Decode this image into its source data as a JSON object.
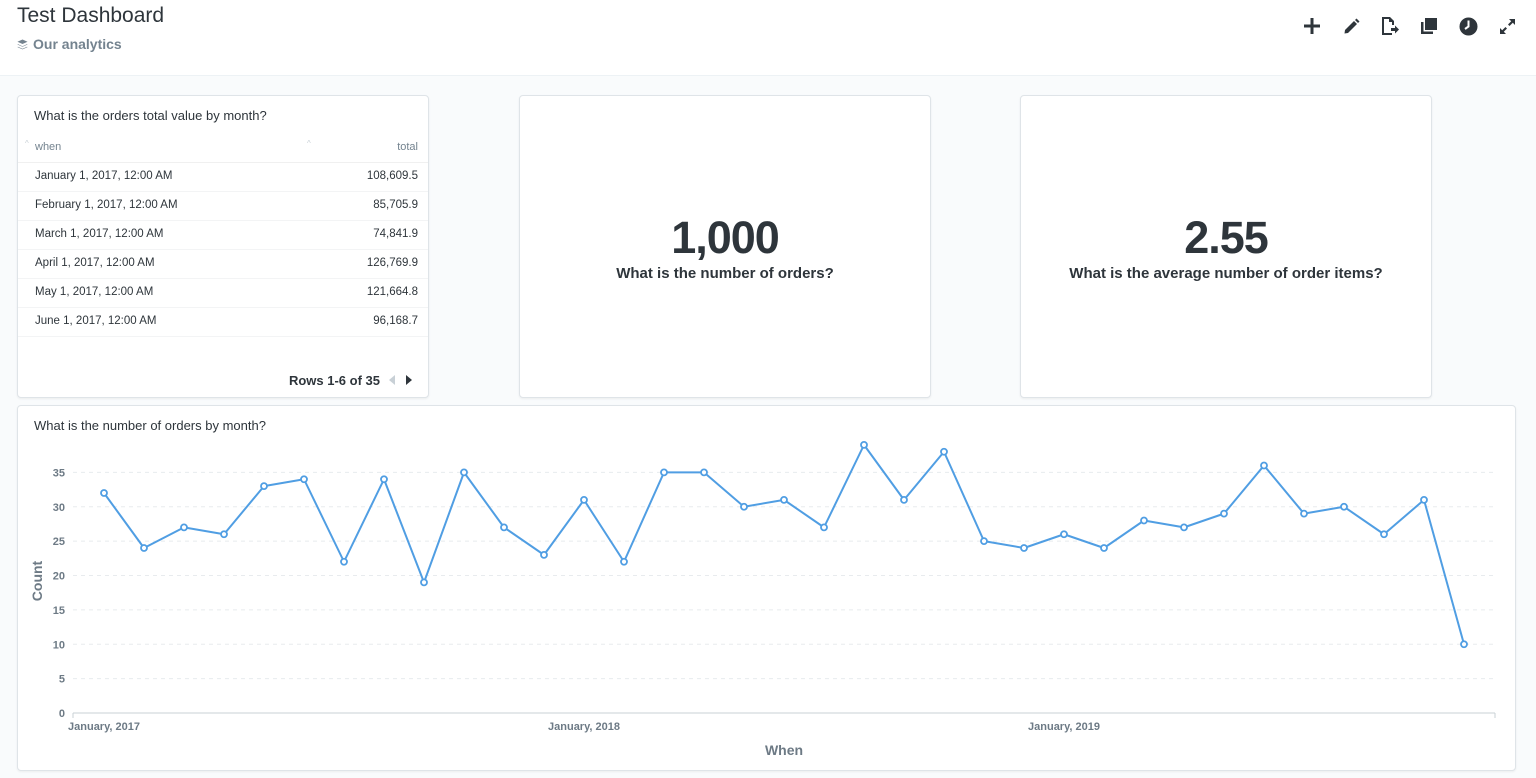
{
  "header": {
    "title": "Test Dashboard",
    "collection": "Our analytics",
    "toolbar": [
      {
        "name": "add-question-button",
        "icon": "plus-icon"
      },
      {
        "name": "edit-button",
        "icon": "pencil-icon"
      },
      {
        "name": "revisions-button",
        "icon": "document-arrow-icon"
      },
      {
        "name": "duplicate-button",
        "icon": "copy-icon"
      },
      {
        "name": "auto-refresh-button",
        "icon": "clock-icon"
      },
      {
        "name": "fullscreen-button",
        "icon": "expand-icon"
      }
    ]
  },
  "table_card": {
    "title": "What is the orders total value by month?",
    "columns": [
      "when",
      "total"
    ],
    "rows": [
      [
        "January 1, 2017, 12:00 AM",
        "108,609.5"
      ],
      [
        "February 1, 2017, 12:00 AM",
        "85,705.9"
      ],
      [
        "March 1, 2017, 12:00 AM",
        "74,841.9"
      ],
      [
        "April 1, 2017, 12:00 AM",
        "126,769.9"
      ],
      [
        "May 1, 2017, 12:00 AM",
        "121,664.8"
      ],
      [
        "June 1, 2017, 12:00 AM",
        "96,168.7"
      ]
    ],
    "pagination": "Rows 1-6 of 35"
  },
  "scalar_orders": {
    "value": "1,000",
    "label": "What is the number of orders?"
  },
  "scalar_avg": {
    "value": "2.55",
    "label": "What is the average number of order items?"
  },
  "line_card": {
    "title": "What is the number of orders by month?"
  },
  "colors": {
    "line": "#509ee3",
    "accent": "#509ee3"
  },
  "chart_data": {
    "type": "line",
    "title": "What is the number of orders by month?",
    "xlabel": "When",
    "ylabel": "Count",
    "ylim": [
      0,
      40
    ],
    "yticks": [
      0,
      5,
      10,
      15,
      20,
      25,
      30,
      35
    ],
    "x_tick_labels": [
      "January, 2017",
      "January, 2018",
      "January, 2019"
    ],
    "x": [
      "2017-01",
      "2017-02",
      "2017-03",
      "2017-04",
      "2017-05",
      "2017-06",
      "2017-07",
      "2017-08",
      "2017-09",
      "2017-10",
      "2017-11",
      "2017-12",
      "2018-01",
      "2018-02",
      "2018-03",
      "2018-04",
      "2018-05",
      "2018-06",
      "2018-07",
      "2018-08",
      "2018-09",
      "2018-10",
      "2018-11",
      "2018-12",
      "2019-01",
      "2019-02",
      "2019-03",
      "2019-04",
      "2019-05",
      "2019-06",
      "2019-07",
      "2019-08",
      "2019-09",
      "2019-10",
      "2019-11"
    ],
    "series": [
      {
        "values": [
          32,
          24,
          27,
          26,
          33,
          34,
          22,
          34,
          19,
          35,
          27,
          23,
          31,
          22,
          35,
          35,
          30,
          31,
          27,
          39,
          31,
          38,
          25,
          24,
          26,
          24,
          28,
          27,
          29,
          36,
          29,
          30,
          26,
          31,
          10
        ]
      }
    ],
    "grid": true
  }
}
